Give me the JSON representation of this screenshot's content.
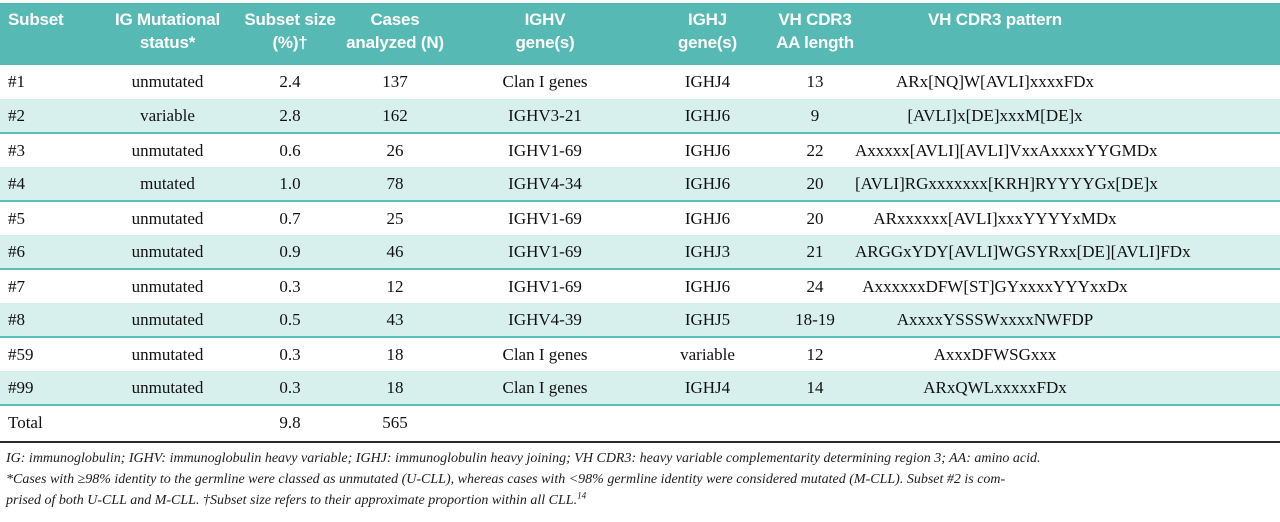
{
  "table": {
    "columns": [
      {
        "line1": "Subset",
        "line2": ""
      },
      {
        "line1": "IG Mutational",
        "line2": "status*"
      },
      {
        "line1": "Subset size",
        "line2": "(%)†"
      },
      {
        "line1": "Cases",
        "line2": "analyzed (N)"
      },
      {
        "line1": "IGHV",
        "line2": "gene(s)"
      },
      {
        "line1": "IGHJ",
        "line2": "gene(s)"
      },
      {
        "line1": "VH CDR3",
        "line2": "AA length"
      },
      {
        "line1": "VH CDR3 pattern",
        "line2": ""
      }
    ],
    "rows": [
      {
        "cells": [
          "#1",
          "unmutated",
          "2.4",
          "137",
          "Clan I genes",
          "IGHJ4",
          "13",
          "ARx[NQ]W[AVLI]xxxxFDx"
        ]
      },
      {
        "cells": [
          "#2",
          "variable",
          "2.8",
          "162",
          "IGHV3-21",
          "IGHJ6",
          "9",
          "[AVLI]x[DE]xxxM[DE]x"
        ]
      },
      {
        "cells": [
          "#3",
          "unmutated",
          "0.6",
          "26",
          "IGHV1-69",
          "IGHJ6",
          "22",
          "Axxxxx[AVLI][AVLI]VxxAxxxxYYGMDx"
        ]
      },
      {
        "cells": [
          "#4",
          "mutated",
          "1.0",
          "78",
          "IGHV4-34",
          "IGHJ6",
          "20",
          "[AVLI]RGxxxxxxx[KRH]RYYYYGx[DE]x"
        ]
      },
      {
        "cells": [
          "#5",
          "unmutated",
          "0.7",
          "25",
          "IGHV1-69",
          "IGHJ6",
          "20",
          "ARxxxxxx[AVLI]xxxYYYYxMDx"
        ]
      },
      {
        "cells": [
          "#6",
          "unmutated",
          "0.9",
          "46",
          "IGHV1-69",
          "IGHJ3",
          "21",
          "ARGGxYDY[AVLI]WGSYRxx[DE][AVLI]FDx"
        ]
      },
      {
        "cells": [
          "#7",
          "unmutated",
          "0.3",
          "12",
          "IGHV1-69",
          "IGHJ6",
          "24",
          "AxxxxxxDFW[ST]GYxxxxYYYxxDx"
        ]
      },
      {
        "cells": [
          "#8",
          "unmutated",
          "0.5",
          "43",
          "IGHV4-39",
          "IGHJ5",
          "18-19",
          "AxxxxYSSSWxxxxNWFDP"
        ]
      },
      {
        "cells": [
          "#59",
          "unmutated",
          "0.3",
          "18",
          "Clan I genes",
          "variable",
          "12",
          "AxxxDFWSGxxx"
        ]
      },
      {
        "cells": [
          "#99",
          "unmutated",
          "0.3",
          "18",
          "Clan I genes",
          "IGHJ4",
          "14",
          "ARxQWLxxxxxFDx"
        ]
      },
      {
        "cells": [
          "Total",
          "",
          "9.8",
          "565",
          "",
          "",
          "",
          ""
        ]
      }
    ]
  },
  "footnotes": {
    "line1": "IG: immunoglobulin; IGHV: immunoglobulin heavy variable; IGHJ: immunoglobulin heavy joining; VH CDR3: heavy variable complementarity determining region 3; AA: amino acid.",
    "line2": "*Cases with ≥98% identity to the germline were classed as unmutated (U-CLL), whereas cases with <98% germline identity were considered mutated (M-CLL). Subset #2 is com-",
    "line3": "prised of both U-CLL and M-CLL. †Subset size refers to their approximate proportion within all CLL.",
    "reference_superscript": "14"
  },
  "colors": {
    "header_teal": "#56b9b3",
    "shaded_row": "#d8f0ed",
    "row_divider_teal": "#5cc0ba",
    "footnote_rule": "#2b2b2b",
    "header_text": "#ffffff",
    "body_text": "#111111"
  }
}
